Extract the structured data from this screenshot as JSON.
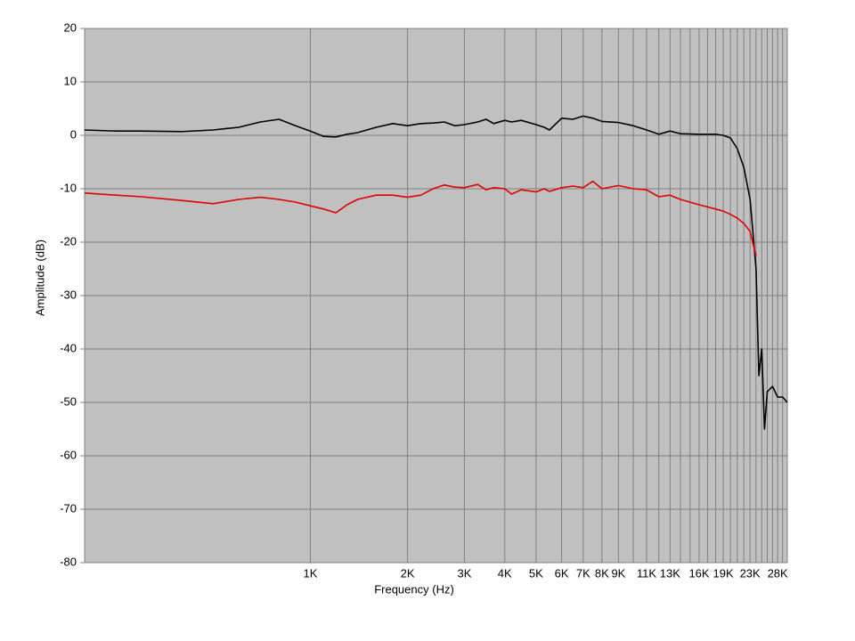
{
  "chart_data": {
    "type": "line",
    "x_label": "Frequency (Hz)",
    "y_label": "Amplitude (dB)",
    "xscale": "log",
    "grid": true,
    "background": "#c0c0c0",
    "xlim": [
      200,
      30000
    ],
    "ylim": [
      -80,
      20
    ],
    "yticks": [
      -80,
      -70,
      -60,
      -50,
      -40,
      -30,
      -20,
      -10,
      0,
      10,
      20
    ],
    "xticks": [
      {
        "value": 1000,
        "label": "1K"
      },
      {
        "value": 2000,
        "label": "2K"
      },
      {
        "value": 3000,
        "label": "3K"
      },
      {
        "value": 4000,
        "label": "4K"
      },
      {
        "value": 5000,
        "label": "5K"
      },
      {
        "value": 6000,
        "label": "6K"
      },
      {
        "value": 7000,
        "label": "7K"
      },
      {
        "value": 8000,
        "label": "8K"
      },
      {
        "value": 9000,
        "label": "9K"
      },
      {
        "value": 10000,
        "label": null
      },
      {
        "value": 11000,
        "label": "11K"
      },
      {
        "value": 12000,
        "label": null
      },
      {
        "value": 13000,
        "label": "13K"
      },
      {
        "value": 14000,
        "label": null
      },
      {
        "value": 15000,
        "label": null
      },
      {
        "value": 16000,
        "label": "16K"
      },
      {
        "value": 17000,
        "label": null
      },
      {
        "value": 18000,
        "label": null
      },
      {
        "value": 19000,
        "label": "19K"
      },
      {
        "value": 20000,
        "label": null
      },
      {
        "value": 21000,
        "label": null
      },
      {
        "value": 22000,
        "label": null
      },
      {
        "value": 23000,
        "label": "23K"
      },
      {
        "value": 24000,
        "label": null
      },
      {
        "value": 25000,
        "label": null
      },
      {
        "value": 26000,
        "label": null
      },
      {
        "value": 27000,
        "label": null
      },
      {
        "value": 28000,
        "label": "28K"
      },
      {
        "value": 29000,
        "label": null
      },
      {
        "value": 30000,
        "label": null
      }
    ],
    "x": [
      200,
      250,
      300,
      400,
      500,
      600,
      700,
      800,
      900,
      1000,
      1100,
      1200,
      1300,
      1400,
      1600,
      1800,
      2000,
      2200,
      2400,
      2600,
      2800,
      3000,
      3300,
      3500,
      3700,
      4000,
      4200,
      4500,
      5000,
      5300,
      5500,
      6000,
      6500,
      7000,
      7500,
      8000,
      9000,
      10000,
      11000,
      12000,
      13000,
      14000,
      16000,
      18000,
      19000,
      20000,
      21000,
      22000,
      23000,
      24000,
      24500,
      25000,
      25500,
      26000,
      27000,
      28000,
      29000,
      30000
    ],
    "series": [
      {
        "color": "#000000",
        "values": [
          1.0,
          0.8,
          0.8,
          0.7,
          1.0,
          1.5,
          2.5,
          3.0,
          1.8,
          0.8,
          -0.2,
          -0.3,
          0.2,
          0.5,
          1.5,
          2.2,
          1.8,
          2.2,
          2.3,
          2.5,
          1.8,
          2.0,
          2.5,
          3.0,
          2.2,
          2.8,
          2.5,
          2.8,
          2.0,
          1.5,
          1.0,
          3.2,
          3.0,
          3.6,
          3.2,
          2.6,
          2.4,
          1.8,
          1.0,
          0.2,
          0.8,
          0.3,
          0.2,
          0.2,
          0,
          -0.5,
          -2.5,
          -6,
          -12,
          -25,
          -45,
          -40,
          -55,
          -48,
          -47,
          -49,
          -49,
          -50
        ]
      },
      {
        "color": "#e00000",
        "values": [
          -10.8,
          -11.2,
          -11.5,
          -12.2,
          -12.8,
          -12.0,
          -11.6,
          -12.0,
          -12.5,
          -13.2,
          -13.8,
          -14.5,
          -13.0,
          -12.0,
          -11.2,
          -11.2,
          -11.6,
          -11.2,
          -10.0,
          -9.3,
          -9.7,
          -9.8,
          -9.2,
          -10.2,
          -9.8,
          -10.0,
          -11.0,
          -10.2,
          -10.6,
          -10.0,
          -10.5,
          -9.8,
          -9.5,
          -9.8,
          -8.6,
          -10.0,
          -9.4,
          -10.0,
          -10.2,
          -11.5,
          -11.2,
          -12.0,
          -13.0,
          -13.8,
          -14.2,
          -14.8,
          -15.5,
          -16.5,
          -18.0,
          -22.6,
          null,
          null,
          null,
          null,
          null,
          null,
          null,
          null
        ]
      }
    ]
  }
}
